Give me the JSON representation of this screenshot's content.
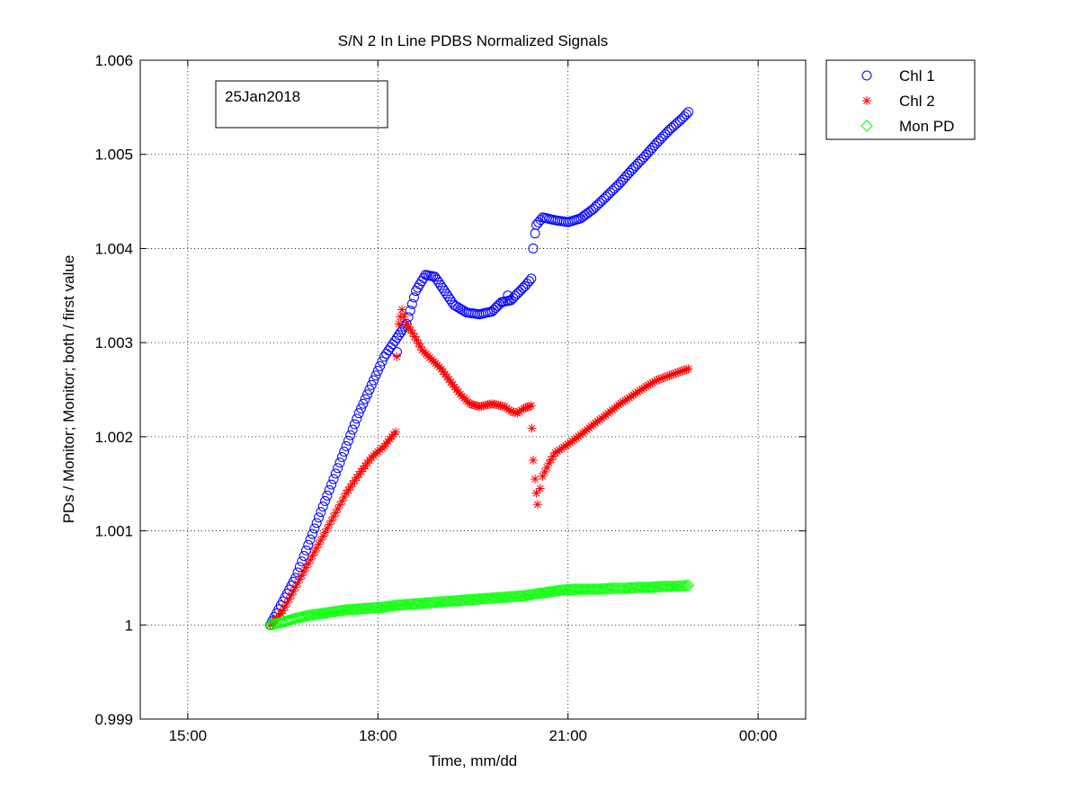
{
  "chart_data": {
    "type": "scatter",
    "title": "S/N 2 In Line PDBS Normalized Signals",
    "xlabel": "Time, mm/dd",
    "ylabel": "PDs / Monitor; Monitor; both / first value",
    "annotation": "25Jan2018",
    "x_unit": "hours",
    "xlim": [
      14.25,
      24.75
    ],
    "ylim": [
      0.999,
      1.006
    ],
    "x_ticks": [
      15,
      18,
      21,
      24
    ],
    "x_tick_labels": [
      "15:00",
      "18:00",
      "21:00",
      "00:00"
    ],
    "y_ticks": [
      0.999,
      1,
      1.001,
      1.002,
      1.003,
      1.004,
      1.005,
      1.006
    ],
    "y_tick_labels": [
      "0.999",
      "1",
      "1.001",
      "1.002",
      "1.003",
      "1.004",
      "1.005",
      "1.006"
    ],
    "grid": true,
    "legend_position": "outside-top-right",
    "series": [
      {
        "name": "Chl 1",
        "marker": "circle",
        "color": "#0000ff",
        "points": [
          [
            16.3,
            1.0
          ],
          [
            16.5,
            1.00025
          ],
          [
            16.7,
            1.0005
          ],
          [
            16.9,
            1.00085
          ],
          [
            17.1,
            1.0012
          ],
          [
            17.3,
            1.00155
          ],
          [
            17.5,
            1.0019
          ],
          [
            17.7,
            1.00225
          ],
          [
            17.9,
            1.00255
          ],
          [
            18.1,
            1.00285
          ],
          [
            18.3,
            1.00305
          ],
          [
            18.45,
            1.0032
          ],
          [
            18.6,
            1.00355
          ],
          [
            18.75,
            1.00372
          ],
          [
            18.9,
            1.0037
          ],
          [
            19.05,
            1.00355
          ],
          [
            19.2,
            1.0034
          ],
          [
            19.4,
            1.00332
          ],
          [
            19.6,
            1.0033
          ],
          [
            19.8,
            1.00333
          ],
          [
            19.95,
            1.00343
          ],
          [
            20.1,
            1.00345
          ],
          [
            20.2,
            1.00352
          ],
          [
            20.32,
            1.0036
          ],
          [
            20.42,
            1.00368
          ],
          [
            20.45,
            1.004
          ],
          [
            20.48,
            1.00416
          ],
          [
            20.5,
            1.00425
          ],
          [
            20.6,
            1.00433
          ],
          [
            20.8,
            1.0043
          ],
          [
            21.0,
            1.00428
          ],
          [
            21.2,
            1.00432
          ],
          [
            21.4,
            1.00442
          ],
          [
            21.6,
            1.00455
          ],
          [
            21.8,
            1.00468
          ],
          [
            22.0,
            1.00483
          ],
          [
            22.2,
            1.00497
          ],
          [
            22.4,
            1.00512
          ],
          [
            22.6,
            1.00526
          ],
          [
            22.8,
            1.00538
          ],
          [
            22.9,
            1.00545
          ]
        ],
        "outliers": [
          [
            20.05,
            1.0035
          ],
          [
            18.3,
            1.0029
          ]
        ]
      },
      {
        "name": "Chl 2",
        "marker": "star",
        "color": "#ff0000",
        "points": [
          [
            16.3,
            1.0
          ],
          [
            16.5,
            1.00015
          ],
          [
            16.7,
            1.0004
          ],
          [
            16.9,
            1.00065
          ],
          [
            17.1,
            1.0009
          ],
          [
            17.3,
            1.00115
          ],
          [
            17.5,
            1.0014
          ],
          [
            17.7,
            1.0016
          ],
          [
            17.9,
            1.00178
          ],
          [
            18.1,
            1.0019
          ],
          [
            18.28,
            1.00205
          ],
          [
            18.3,
            1.00285
          ],
          [
            18.33,
            1.0032
          ],
          [
            18.38,
            1.00335
          ],
          [
            18.45,
            1.0032
          ],
          [
            18.55,
            1.0031
          ],
          [
            18.7,
            1.00292
          ],
          [
            18.85,
            1.00282
          ],
          [
            19.0,
            1.00272
          ],
          [
            19.15,
            1.00258
          ],
          [
            19.3,
            1.00245
          ],
          [
            19.45,
            1.00235
          ],
          [
            19.6,
            1.00232
          ],
          [
            19.8,
            1.00235
          ],
          [
            20.0,
            1.00232
          ],
          [
            20.1,
            1.00227
          ],
          [
            20.2,
            1.00225
          ],
          [
            20.3,
            1.0023
          ],
          [
            20.42,
            1.00233
          ],
          [
            20.43,
            1.00209
          ],
          [
            20.45,
            1.00175
          ],
          [
            20.48,
            1.00155
          ],
          [
            20.5,
            1.0014
          ],
          [
            20.52,
            1.00128
          ],
          [
            20.56,
            1.00145
          ],
          [
            20.6,
            1.00158
          ],
          [
            20.7,
            1.00172
          ],
          [
            20.8,
            1.00183
          ],
          [
            21.0,
            1.00192
          ],
          [
            21.2,
            1.00202
          ],
          [
            21.4,
            1.00213
          ],
          [
            21.6,
            1.00223
          ],
          [
            21.8,
            1.00234
          ],
          [
            22.0,
            1.00243
          ],
          [
            22.2,
            1.00252
          ],
          [
            22.4,
            1.0026
          ],
          [
            22.6,
            1.00265
          ],
          [
            22.8,
            1.0027
          ],
          [
            22.9,
            1.00272
          ]
        ]
      },
      {
        "name": "Mon PD",
        "marker": "diamond",
        "color": "#00ff00",
        "points": [
          [
            16.3,
            1.0
          ],
          [
            16.5,
            1.00003
          ],
          [
            16.7,
            1.00007
          ],
          [
            16.9,
            1.0001
          ],
          [
            17.1,
            1.00012
          ],
          [
            17.3,
            1.00014
          ],
          [
            17.5,
            1.00016
          ],
          [
            17.7,
            1.00017
          ],
          [
            17.9,
            1.00018
          ],
          [
            18.1,
            1.00019
          ],
          [
            18.3,
            1.00021
          ],
          [
            18.5,
            1.00022
          ],
          [
            18.7,
            1.00023
          ],
          [
            18.9,
            1.00024
          ],
          [
            19.1,
            1.00025
          ],
          [
            19.3,
            1.00026
          ],
          [
            19.5,
            1.00027
          ],
          [
            19.7,
            1.00028
          ],
          [
            19.9,
            1.00029
          ],
          [
            20.1,
            1.0003
          ],
          [
            20.3,
            1.00031
          ],
          [
            20.5,
            1.00033
          ],
          [
            20.7,
            1.00035
          ],
          [
            20.9,
            1.00037
          ],
          [
            21.1,
            1.00038
          ],
          [
            21.3,
            1.00038
          ],
          [
            21.5,
            1.00038
          ],
          [
            21.7,
            1.00039
          ],
          [
            21.9,
            1.00039
          ],
          [
            22.1,
            1.0004
          ],
          [
            22.3,
            1.0004
          ],
          [
            22.5,
            1.00041
          ],
          [
            22.7,
            1.00041
          ],
          [
            22.9,
            1.00042
          ]
        ]
      }
    ]
  }
}
